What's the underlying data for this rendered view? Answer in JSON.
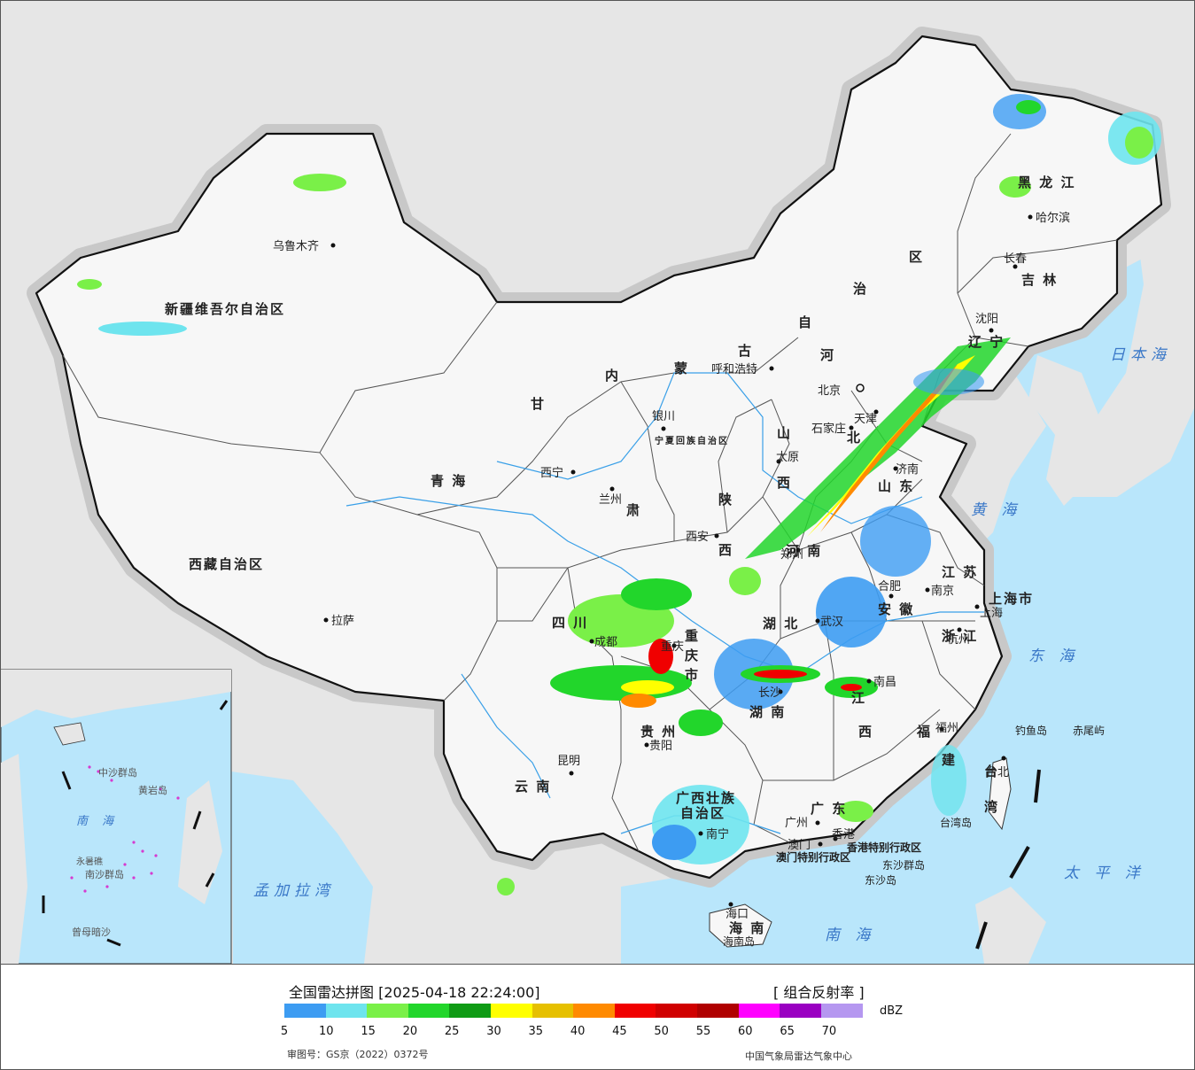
{
  "legend": {
    "title": "全国雷达拼图 [2025-04-18 22:24:00]",
    "product": "[ 组合反射率 ]",
    "unit": "dBZ",
    "ticks": [
      "5",
      "10",
      "15",
      "20",
      "25",
      "30",
      "35",
      "40",
      "45",
      "50",
      "55",
      "60",
      "65",
      "70"
    ],
    "colors": [
      "#3d9cf2",
      "#6ee4ee",
      "#7af048",
      "#22d62b",
      "#0f9b15",
      "#ffff00",
      "#e6c000",
      "#ff8a00",
      "#f00000",
      "#d00000",
      "#b00000",
      "#ff00ff",
      "#9a00c2",
      "#b597f0"
    ],
    "approval": "审图号：GS京（2022）0372号",
    "source": "中国气象局雷达气象中心"
  },
  "cities": [
    "乌鲁木齐",
    "拉萨",
    "西宁",
    "兰州",
    "银川",
    "呼和浩特",
    "北京",
    "天津",
    "石家庄",
    "太原",
    "西安",
    "成都",
    "重庆",
    "贵阳",
    "昆明",
    "南宁",
    "广州",
    "澳门",
    "香港",
    "海口",
    "长沙",
    "武汉",
    "南昌",
    "合肥",
    "南京",
    "上海",
    "杭州",
    "福州",
    "台北",
    "沈阳",
    "长春",
    "哈尔滨",
    "济南",
    "郑州"
  ],
  "provinces": [
    "新疆维吾尔自治区",
    "西藏自治区",
    "青海",
    "甘肃",
    "内蒙古自治区",
    "黑龙江",
    "吉林",
    "辽宁",
    "河北",
    "山西",
    "陕西",
    "山东",
    "河南",
    "江苏",
    "安徽",
    "湖北",
    "四川",
    "重庆市",
    "贵州",
    "云南",
    "湖南",
    "江西",
    "浙江",
    "福建",
    "广东",
    "广西壮族自治区",
    "海南",
    "台湾",
    "上海市",
    "宁夏回族自治区"
  ],
  "seas": [
    "日本海",
    "黄海",
    "东海",
    "太平洋",
    "南海",
    "孟加拉湾"
  ],
  "islands": [
    "钓鱼岛",
    "赤尾屿",
    "台湾岛",
    "东沙群岛",
    "东沙岛",
    "海南岛",
    "香港特别行政区",
    "澳门特别行政区"
  ],
  "inset_labels": [
    "南 海",
    "中沙群岛",
    "黄岩岛",
    "南沙群岛",
    "曾母暗沙",
    "永暑礁"
  ]
}
